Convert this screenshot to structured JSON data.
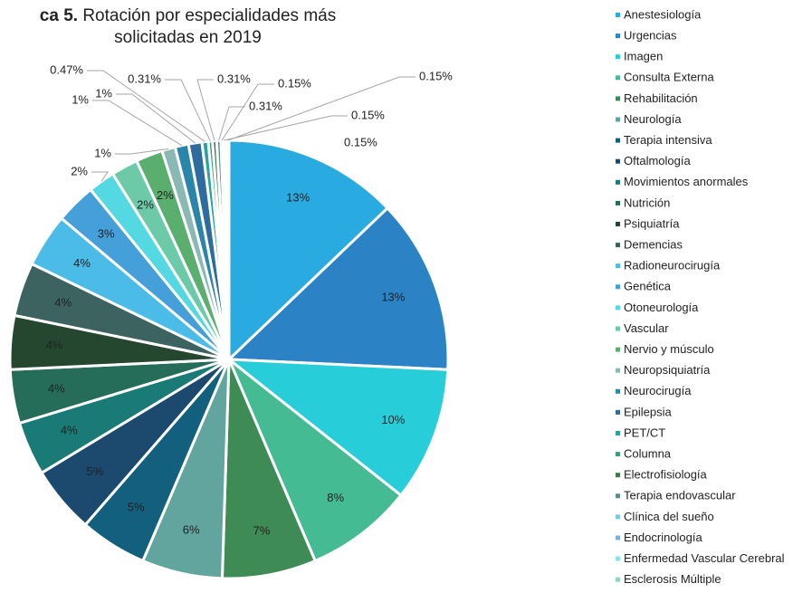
{
  "chart_data": {
    "type": "pie",
    "title_prefix": "ca 5.",
    "title": "Rotación por especialidades más solicitadas en 2019",
    "categories": [
      "Anestesiología",
      "Urgencias",
      "Imagen",
      "Consulta Externa",
      "Rehabilitación",
      "Neurología",
      "Terapia intensiva",
      "Oftalmología",
      "Movimientos anormales",
      "Nutrición",
      "Psiquiatría",
      "Demencias",
      "Radioneurocirugía",
      "Genética",
      "Otoneurología",
      "Vascular",
      "Nervio y músculo",
      "Neuropsiquiatría",
      "Neurocirugía",
      "Epilepsia",
      "PET/CT",
      "Columna",
      "Electrofisiología",
      "Terapia endovascular",
      "Clínica del sueño",
      "Endocrinología",
      "Enfermedad Vascular Cerebral",
      "Esclerosis Múltiple"
    ],
    "values": [
      13,
      13,
      10,
      8,
      7,
      6,
      5,
      5,
      4,
      4,
      4,
      4,
      4,
      3,
      2,
      2,
      2,
      1,
      1,
      1,
      0.47,
      0.31,
      0.31,
      0.31,
      0.15,
      0.15,
      0.15,
      0.15
    ],
    "value_labels": [
      "13%",
      "13%",
      "10%",
      "8%",
      "7%",
      "6%",
      "5%",
      "5%",
      "4%",
      "4%",
      "4%",
      "4%",
      "4%",
      "3%",
      "2%",
      "2%",
      "2%",
      "1%",
      "1%",
      "1%",
      "0.47%",
      "0.31%",
      "0.31%",
      "0.31%",
      "0.15%",
      "0.15%",
      "0.15%",
      "0.15%"
    ],
    "colors": [
      "#29abe2",
      "#2b83c6",
      "#27cdd8",
      "#45bb94",
      "#3f8b55",
      "#62a59f",
      "#135f7e",
      "#1b4a6e",
      "#197a76",
      "#256d58",
      "#26472f",
      "#3c6360",
      "#4bbce8",
      "#459fd9",
      "#54d8e2",
      "#6ccaa8",
      "#5aae6e",
      "#8ab8b3",
      "#2a86a8",
      "#2d6c9c",
      "#2aa39c",
      "#399e7b",
      "#3d7a48",
      "#5b8e89",
      "#7fc9e8",
      "#7bb0de",
      "#89e1ea",
      "#8fd7bf"
    ],
    "legend": "right"
  }
}
